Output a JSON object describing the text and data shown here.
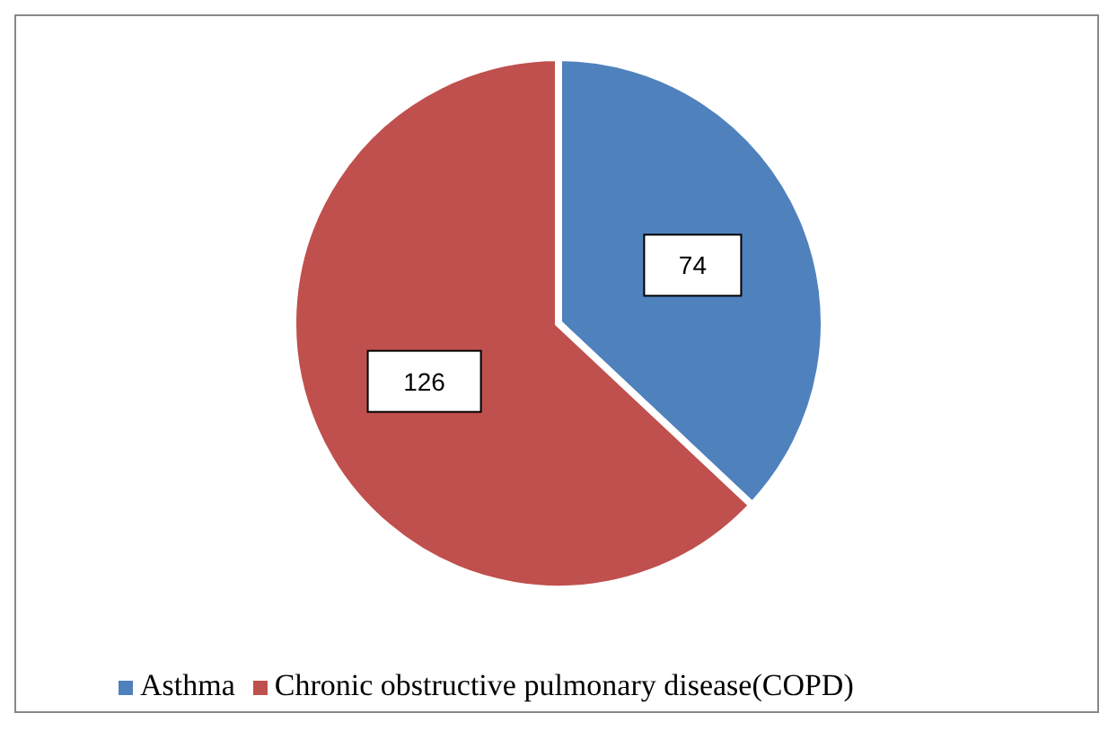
{
  "chart_data": {
    "type": "pie",
    "categories": [
      "Asthma",
      "Chronic obstructive pulmonary disease(COPD)"
    ],
    "values": [
      74,
      126
    ],
    "colors": [
      "#4f81bd",
      "#c0504d"
    ],
    "data_labels": true,
    "legend": "bottom"
  }
}
